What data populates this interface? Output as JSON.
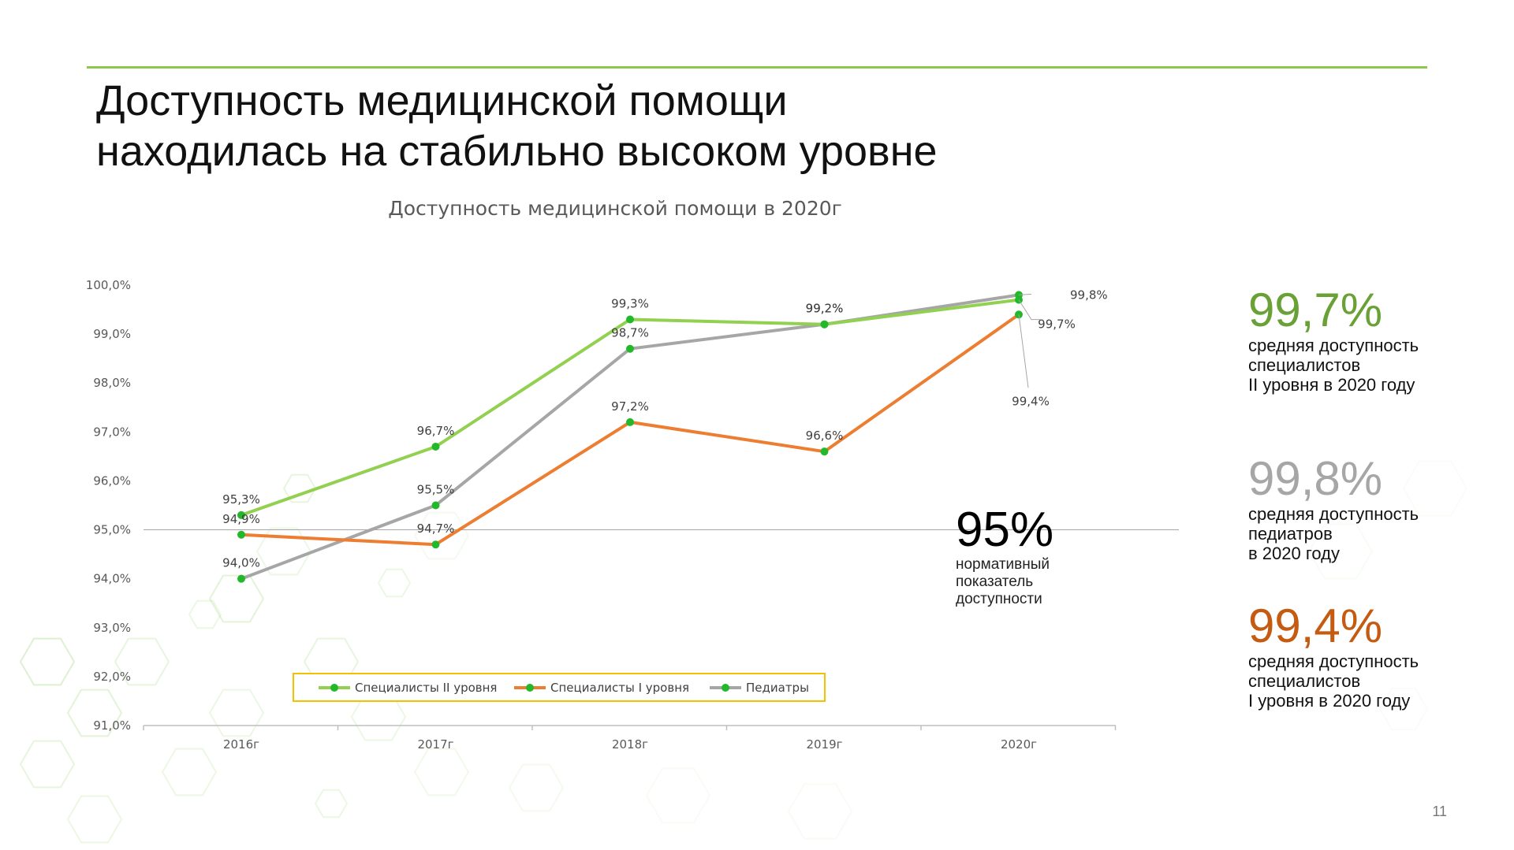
{
  "slide": {
    "title_line1": "Доступность медицинской помощи",
    "title_line2": "находилась на стабильно высоком уровне",
    "page_number": "11"
  },
  "chart_data": {
    "type": "line",
    "title": "Доступность медицинской помощи в 2020г",
    "categories": [
      "2016г",
      "2017г",
      "2018г",
      "2019г",
      "2020г"
    ],
    "ylim": [
      91.0,
      100.0
    ],
    "ytick_labels": [
      "91,0%",
      "92,0%",
      "93,0%",
      "94,0%",
      "95,0%",
      "96,0%",
      "97,0%",
      "98,0%",
      "99,0%",
      "100,0%"
    ],
    "reference_line": 95.0,
    "legend_placement": "bottom",
    "series": [
      {
        "name": "Специалисты II уровня",
        "color": "#92d050",
        "values": [
          95.3,
          96.7,
          99.3,
          99.2,
          99.7
        ],
        "labels": [
          "95,3%",
          "96,7%",
          "99,3%",
          "99,2%",
          "99,7%"
        ]
      },
      {
        "name": "Специалисты I уровня",
        "color": "#ed7d31",
        "values": [
          94.9,
          94.7,
          97.2,
          96.6,
          99.4
        ],
        "labels": [
          "94,9%",
          "94,7%",
          "97,2%",
          "96,6%",
          "99,4%"
        ]
      },
      {
        "name": "Педиатры",
        "color": "#a6a6a6",
        "values": [
          94.0,
          95.5,
          98.7,
          99.2,
          99.8
        ],
        "labels": [
          "94,0%",
          "95,5%",
          "98,7%",
          "99,2%",
          "99,8%"
        ]
      }
    ],
    "marker_color": "#22b82a"
  },
  "norm": {
    "value": "95%",
    "text": "нормативный показатель доступности"
  },
  "kpis": [
    {
      "value": "99,7%",
      "text_line1": "средняя доступность",
      "text_line2": "специалистов",
      "text_line3": "II уровня в 2020 году",
      "color": "#6aa136"
    },
    {
      "value": "99,8%",
      "text_line1": "средняя доступность",
      "text_line2": "педиатров",
      "text_line3": "в 2020 году",
      "color": "#a6a6a6"
    },
    {
      "value": "99,4%",
      "text_line1": "средняя доступность",
      "text_line2": "специалистов",
      "text_line3": "I уровня в 2020 году",
      "color": "#c55a11"
    }
  ]
}
